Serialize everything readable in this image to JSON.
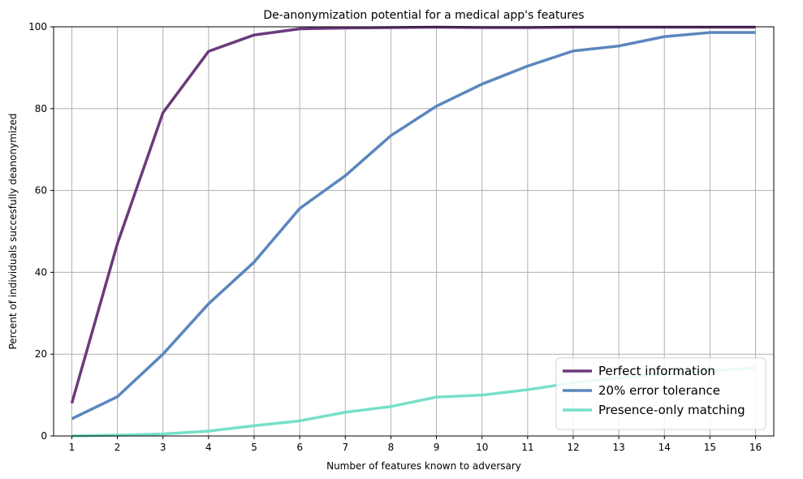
{
  "chart_data": {
    "type": "line",
    "title": "De-anonymization potential for a medical app's features",
    "xlabel": "Number of features known to adversary",
    "ylabel": "Percent of individuals succesfully deanonymized",
    "x": [
      1,
      2,
      3,
      4,
      5,
      6,
      7,
      8,
      9,
      10,
      11,
      12,
      13,
      14,
      15,
      16
    ],
    "xlim": [
      0.6,
      16.4
    ],
    "ylim": [
      0,
      100
    ],
    "yticks": [
      0,
      20,
      40,
      60,
      80,
      100
    ],
    "grid": true,
    "legend_position": "lower-right",
    "series": [
      {
        "name": "Perfect information",
        "color": "#6c3a7c",
        "values": [
          8,
          47,
          79,
          94,
          98,
          99.5,
          99.7,
          99.8,
          99.9,
          99.8,
          99.8,
          99.9,
          99.9,
          99.9,
          99.9,
          99.9
        ]
      },
      {
        "name": "20% error tolerance",
        "color": "#5b86bd",
        "values": [
          4.2,
          9.6,
          20,
          32.3,
          42.5,
          55.6,
          63.6,
          73.4,
          80.6,
          86,
          90.4,
          94.1,
          95.3,
          97.6,
          98.6,
          98.6
        ]
      },
      {
        "name": "Presence-only matching",
        "color": "#76e0c8",
        "values": [
          0,
          0.2,
          0.5,
          1.2,
          2.5,
          3.7,
          5.8,
          7.2,
          9.5,
          10,
          11.3,
          13,
          14.2,
          15.2,
          16,
          16.6
        ]
      }
    ]
  }
}
